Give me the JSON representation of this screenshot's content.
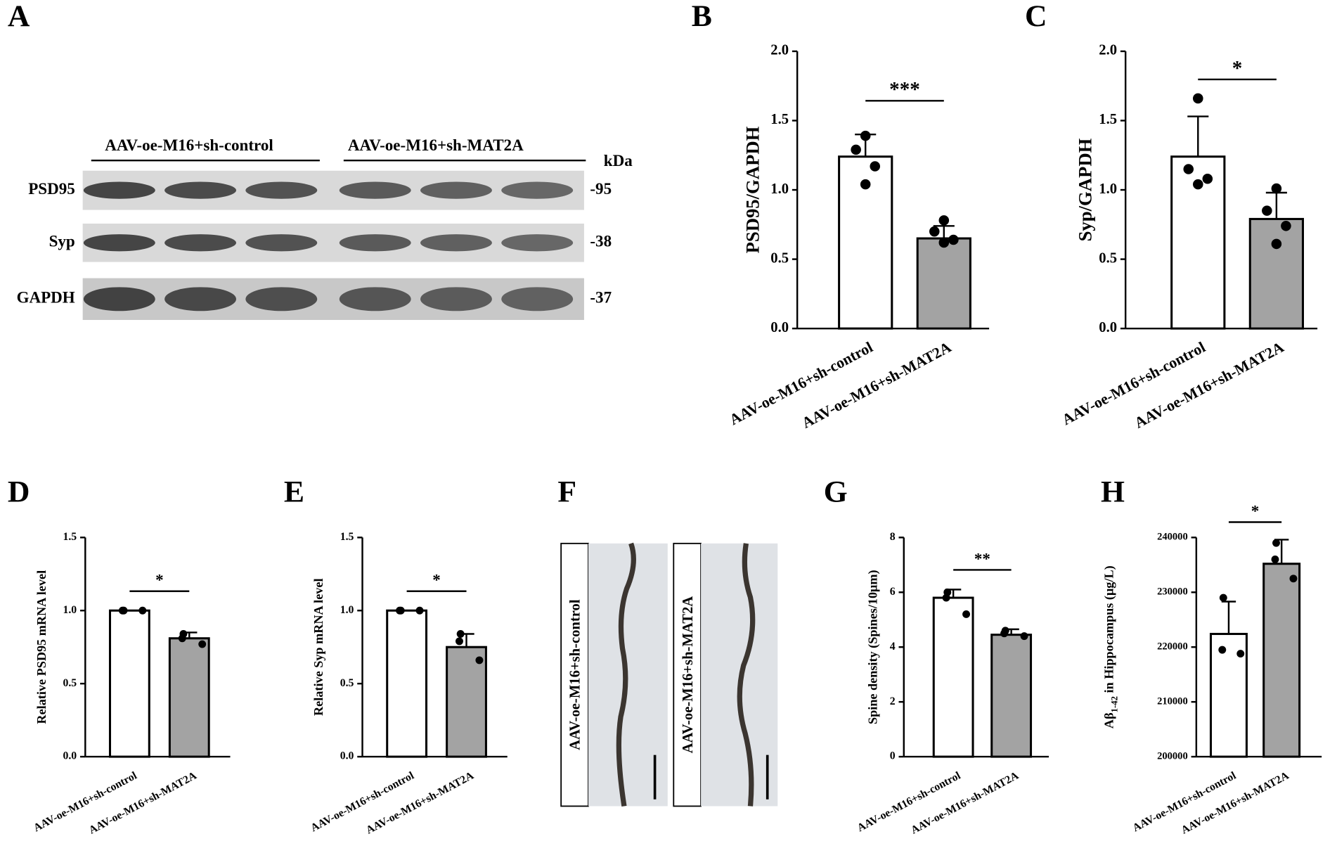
{
  "western_blot": {
    "label": "A",
    "groups": [
      "AAV-oe-M16+sh-control",
      "AAV-oe-M16+sh-MAT2A"
    ],
    "unit": "kDa",
    "rows": [
      {
        "name": "PSD95",
        "kda": "-95"
      },
      {
        "name": "Syp",
        "kda": "-38"
      },
      {
        "name": "GAPDH",
        "kda": "-37"
      }
    ]
  },
  "micrograph": {
    "label": "F",
    "images": [
      "AAV-oe-M16+sh-control",
      "AAV-oe-M16+sh-MAT2A"
    ]
  },
  "chart_data": [
    {
      "type": "bar",
      "label": "B",
      "ylabel": "PSD95/GAPDH",
      "categories": [
        "AAV-oe-M16+sh-control",
        "AAV-oe-M16+sh-MAT2A"
      ],
      "colors": [
        "#ffffff",
        "#a3a3a3"
      ],
      "values": [
        1.24,
        0.65
      ],
      "errors": [
        0.16,
        0.09
      ],
      "points": [
        [
          1.39,
          1.29,
          1.17,
          1.04
        ],
        [
          0.78,
          0.7,
          0.64,
          0.62
        ]
      ],
      "significance": "***",
      "ylim": [
        0,
        2
      ],
      "yticks": [
        {
          "value": 0,
          "label": "0.0"
        },
        {
          "value": 0.5,
          "label": "0.5"
        },
        {
          "value": 1,
          "label": "1.0"
        },
        {
          "value": 1.5,
          "label": "1.5"
        },
        {
          "value": 2,
          "label": "2.0"
        }
      ]
    },
    {
      "type": "bar",
      "label": "C",
      "ylabel": "Syp/GAPDH",
      "categories": [
        "AAV-oe-M16+sh-control",
        "AAV-oe-M16+sh-MAT2A"
      ],
      "colors": [
        "#ffffff",
        "#a3a3a3"
      ],
      "values": [
        1.24,
        0.79
      ],
      "errors": [
        0.29,
        0.19
      ],
      "points": [
        [
          1.66,
          1.15,
          1.08,
          1.04
        ],
        [
          1.01,
          0.85,
          0.74,
          0.61
        ]
      ],
      "significance": "*",
      "ylim": [
        0,
        2
      ],
      "yticks": [
        {
          "value": 0,
          "label": "0.0"
        },
        {
          "value": 0.5,
          "label": "0.5"
        },
        {
          "value": 1,
          "label": "1.0"
        },
        {
          "value": 1.5,
          "label": "1.5"
        },
        {
          "value": 2,
          "label": "2.0"
        }
      ]
    },
    {
      "type": "bar",
      "label": "D",
      "ylabel": "Relative PSD95 mRNA level",
      "categories": [
        "AAV-oe-M16+sh-control",
        "AAV-oe-M16+sh-MAT2A"
      ],
      "colors": [
        "#ffffff",
        "#a3a3a3"
      ],
      "values": [
        1.0,
        0.81
      ],
      "errors": [
        0.0,
        0.04
      ],
      "points": [
        [
          1.0,
          1.0,
          1.0
        ],
        [
          0.84,
          0.81,
          0.77
        ]
      ],
      "significance": "*",
      "ylim": [
        0,
        1.5
      ],
      "yticks": [
        {
          "value": 0,
          "label": "0.0"
        },
        {
          "value": 0.5,
          "label": "0.5"
        },
        {
          "value": 1,
          "label": "1.0"
        },
        {
          "value": 1.5,
          "label": "1.5"
        }
      ]
    },
    {
      "type": "bar",
      "label": "E",
      "ylabel": "Relative Syp mRNA level",
      "categories": [
        "AAV-oe-M16+sh-control",
        "AAV-oe-M16+sh-MAT2A"
      ],
      "colors": [
        "#ffffff",
        "#a3a3a3"
      ],
      "values": [
        1.0,
        0.75
      ],
      "errors": [
        0.0,
        0.09
      ],
      "points": [
        [
          1.0,
          1.0,
          1.0
        ],
        [
          0.84,
          0.79,
          0.66
        ]
      ],
      "significance": "*",
      "ylim": [
        0,
        1.5
      ],
      "yticks": [
        {
          "value": 0,
          "label": "0.0"
        },
        {
          "value": 0.5,
          "label": "0.5"
        },
        {
          "value": 1,
          "label": "1.0"
        },
        {
          "value": 1.5,
          "label": "1.5"
        }
      ]
    },
    {
      "type": "bar",
      "label": "G",
      "ylabel": "Spine density (Spines/10μm)",
      "categories": [
        "AAV-oe-M16+sh-control",
        "AAV-oe-M16+sh-MAT2A"
      ],
      "colors": [
        "#ffffff",
        "#a3a3a3"
      ],
      "values": [
        5.8,
        4.45
      ],
      "errors": [
        0.3,
        0.2
      ],
      "points": [
        [
          6.0,
          5.8,
          5.2
        ],
        [
          4.6,
          4.5,
          4.4
        ]
      ],
      "significance": "**",
      "ylim": [
        0,
        8
      ],
      "yticks": [
        0,
        2,
        4,
        6,
        8
      ]
    },
    {
      "type": "bar",
      "label": "H",
      "ylabel": [
        "Aβ",
        "1-42",
        " in Hippocampus (μg/L)"
      ],
      "categories": [
        "AAV-oe-M16+sh-control",
        "AAV-oe-M16+sh-MAT2A"
      ],
      "colors": [
        "#ffffff",
        "#a3a3a3"
      ],
      "values": [
        222400,
        235200
      ],
      "errors": [
        5900,
        4400
      ],
      "points": [
        [
          229000,
          219500,
          218800
        ],
        [
          239000,
          236000,
          232500
        ]
      ],
      "significance": "*",
      "ylim": [
        200000,
        240000
      ],
      "yticks": [
        200000,
        210000,
        220000,
        230000,
        240000
      ]
    }
  ]
}
